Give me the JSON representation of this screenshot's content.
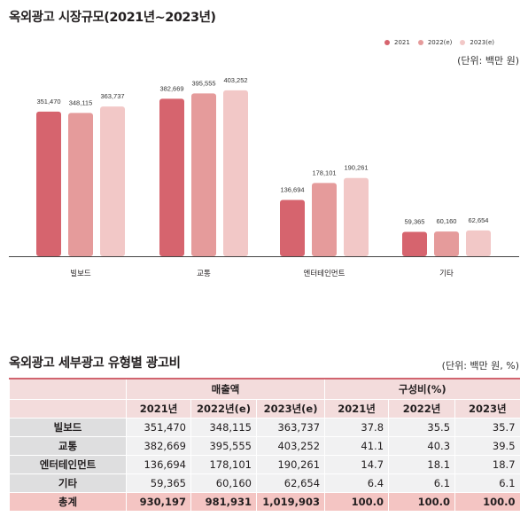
{
  "chart_title": "옥외광고 시장규모(2021년~2023년)",
  "chart_unit": "(단위: 백만 원)",
  "colors": {
    "s2021": "#d6646e",
    "s2022": "#e59b9b",
    "s2023": "#f2c8c7",
    "axis": "#444444",
    "table_accent": "#d1646f"
  },
  "chart_data": {
    "type": "bar",
    "categories": [
      "빌보드",
      "교통",
      "엔터테인먼트",
      "기타"
    ],
    "series": [
      {
        "name": "2021",
        "values": [
          351470,
          382669,
          136694,
          59365
        ],
        "labels": [
          "351,470",
          "382,669",
          "136,694",
          "59,365"
        ]
      },
      {
        "name": "2022(e)",
        "values": [
          348115,
          395555,
          178101,
          60160
        ],
        "labels": [
          "348,115",
          "395,555",
          "178,101",
          "60,160"
        ]
      },
      {
        "name": "2023(e)",
        "values": [
          363737,
          403252,
          190261,
          62654
        ],
        "labels": [
          "363,737",
          "403,252",
          "190,261",
          "62,654"
        ]
      }
    ],
    "ylim": [
      0,
      530000
    ],
    "legend": "top-right",
    "grid": false
  },
  "table": {
    "title": "옥외광고 세부광고 유형별 광고비",
    "unit": "(단위: 백만 원, %)",
    "group_sales": "매출액",
    "group_share": "구성비(%)",
    "sales_years": [
      "2021년",
      "2022년(e)",
      "2023년(e)"
    ],
    "share_years": [
      "2021년",
      "2022년",
      "2023년"
    ],
    "rows": [
      {
        "label": "빌보드",
        "sales": [
          "351,470",
          "348,115",
          "363,737"
        ],
        "share": [
          "37.8",
          "35.5",
          "35.7"
        ]
      },
      {
        "label": "교통",
        "sales": [
          "382,669",
          "395,555",
          "403,252"
        ],
        "share": [
          "41.1",
          "40.3",
          "39.5"
        ]
      },
      {
        "label": "엔터테인먼트",
        "sales": [
          "136,694",
          "178,101",
          "190,261"
        ],
        "share": [
          "14.7",
          "18.1",
          "18.7"
        ]
      },
      {
        "label": "기타",
        "sales": [
          "59,365",
          "60,160",
          "62,654"
        ],
        "share": [
          "6.4",
          "6.1",
          "6.1"
        ]
      }
    ],
    "total": {
      "label": "총계",
      "sales": [
        "930,197",
        "981,931",
        "1,019,903"
      ],
      "share": [
        "100.0",
        "100.0",
        "100.0"
      ]
    }
  }
}
